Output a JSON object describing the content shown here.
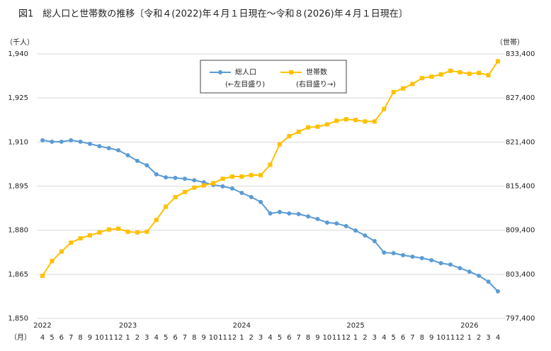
{
  "chart_data": {
    "type": "line",
    "title": "図1　総人口と世帯数の推移〔令和４(2022)年４月１日現在～令和８(2026)年４月１日現在〕",
    "y_unit": "（千人）",
    "y2_unit": "（世帯）",
    "x_unit": "（月）",
    "categories": [
      "4",
      "5",
      "6",
      "7",
      "8",
      "9",
      "10",
      "11",
      "12",
      "1",
      "2",
      "3",
      "4",
      "5",
      "6",
      "7",
      "8",
      "9",
      "10",
      "11",
      "12",
      "1",
      "2",
      "3",
      "4",
      "5",
      "6",
      "7",
      "8",
      "9",
      "10",
      "11",
      "12",
      "1",
      "2",
      "3",
      "4",
      "5",
      "6",
      "7",
      "8",
      "9",
      "10",
      "11",
      "12",
      "1",
      "2",
      "3",
      "4"
    ],
    "years": [
      "2022",
      null,
      null,
      null,
      null,
      null,
      null,
      null,
      null,
      "2023",
      null,
      null,
      null,
      null,
      null,
      null,
      null,
      null,
      null,
      null,
      null,
      "2024",
      null,
      null,
      null,
      null,
      null,
      null,
      null,
      null,
      null,
      null,
      null,
      "2025",
      null,
      null,
      null,
      null,
      null,
      null,
      null,
      null,
      null,
      null,
      null,
      "2026",
      null,
      null,
      null
    ],
    "series": [
      {
        "name": "総人口",
        "note": "(←左目盛り)",
        "color": "#5b9bd5",
        "marker": "circle",
        "values": [
          1910.6,
          1910.1,
          1910.1,
          1910.6,
          1910.1,
          1909.4,
          1908.6,
          1907.9,
          1907.2,
          1905.5,
          1903.6,
          1902.1,
          1899.0,
          1898.0,
          1897.8,
          1897.5,
          1897.0,
          1896.3,
          1895.4,
          1894.9,
          1894.2,
          1892.7,
          1891.3,
          1889.6,
          1885.7,
          1886.2,
          1885.7,
          1885.5,
          1884.7,
          1883.8,
          1882.6,
          1882.3,
          1881.4,
          1879.9,
          1878.2,
          1876.3,
          1872.4,
          1872.2,
          1871.5,
          1871.0,
          1870.5,
          1869.8,
          1868.8,
          1868.3,
          1867.1,
          1865.9,
          1864.5,
          1862.5,
          1859.2
        ]
      },
      {
        "name": "世帯数",
        "note": "(右目盛り→)",
        "color": "#ffc000",
        "marker": "square",
        "axis": "y2",
        "values": [
          803200,
          805200,
          806500,
          807700,
          808300,
          808700,
          809100,
          809500,
          809600,
          809200,
          809100,
          809200,
          810800,
          812600,
          813900,
          814600,
          815200,
          815500,
          815800,
          816400,
          816700,
          816700,
          816900,
          816900,
          818300,
          821100,
          822200,
          822800,
          823400,
          823500,
          823800,
          824300,
          824500,
          824400,
          824200,
          824200,
          825900,
          828200,
          828700,
          829300,
          830100,
          830300,
          830600,
          831100,
          830900,
          830700,
          830800,
          830500,
          832400
        ]
      }
    ],
    "ylim": [
      1850,
      1940
    ],
    "yticks": [
      {
        "value": 1850,
        "label": "1,850"
      },
      {
        "value": 1865,
        "label": "1,865"
      },
      {
        "value": 1880,
        "label": "1,880"
      },
      {
        "value": 1895,
        "label": "1,895"
      },
      {
        "value": 1910,
        "label": "1,910"
      },
      {
        "value": 1925,
        "label": "1,925"
      },
      {
        "value": 1940,
        "label": "1,940"
      }
    ],
    "y2lim": [
      797400,
      833400
    ],
    "y2ticks": [
      {
        "value": 797400,
        "label": "797,400"
      },
      {
        "value": 803400,
        "label": "803,400"
      },
      {
        "value": 809400,
        "label": "809,400"
      },
      {
        "value": 815400,
        "label": "815,400"
      },
      {
        "value": 821400,
        "label": "821,400"
      },
      {
        "value": 827400,
        "label": "827,400"
      },
      {
        "value": 833400,
        "label": "833,400"
      }
    ],
    "grid": true
  }
}
